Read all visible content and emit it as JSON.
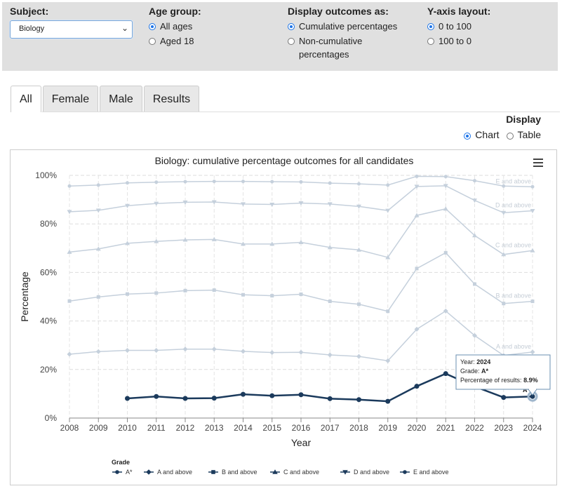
{
  "filters": {
    "subject": {
      "label": "Subject:",
      "value": "Biology"
    },
    "age_group": {
      "label": "Age group:",
      "options": [
        "All ages",
        "Aged 18"
      ],
      "selected": 0
    },
    "display_outcomes": {
      "label": "Display outcomes as:",
      "options": [
        "Cumulative percentages",
        "Non-cumulative",
        "percentages"
      ],
      "selected": 0
    },
    "y_axis": {
      "label": "Y-axis layout:",
      "options": [
        "0 to 100",
        "100 to 0"
      ],
      "selected": 0
    }
  },
  "tabs": [
    "All",
    "Female",
    "Male",
    "Results"
  ],
  "display": {
    "title": "Display",
    "options": [
      "Chart",
      "Table"
    ],
    "selected": 0
  },
  "tooltip": {
    "year_label": "Year:",
    "year": "2024",
    "grade_label": "Grade:",
    "grade": "A*",
    "pct_label": "Percentage of results:",
    "pct": "8.9%"
  },
  "chart_data": {
    "type": "line",
    "title": "Biology: cumulative percentage outcomes for all candidates",
    "xlabel": "Year",
    "ylabel": "Percentage",
    "x": [
      "2008",
      "2009",
      "2010",
      "2011",
      "2012",
      "2013",
      "2014",
      "2015",
      "2016",
      "2017",
      "2018",
      "2019",
      "2020",
      "2021",
      "2022",
      "2023",
      "2024"
    ],
    "ylim": [
      0,
      100
    ],
    "yticks": [
      "0%",
      "20%",
      "40%",
      "60%",
      "80%",
      "100%"
    ],
    "grid": true,
    "legend_title": "Grade",
    "legend_position": "bottom",
    "series": [
      {
        "name": "A*",
        "highlight": true,
        "end_label": "A*",
        "color": "#1b3a5c",
        "values": [
          null,
          null,
          8.1,
          8.9,
          8.1,
          8.2,
          9.8,
          9.2,
          9.6,
          8.0,
          7.6,
          6.9,
          13.1,
          18.3,
          13.0,
          8.5,
          8.9
        ]
      },
      {
        "name": "A and above",
        "end_label": "A and above",
        "color": "#c5d0dc",
        "values": [
          26.3,
          27.4,
          27.9,
          27.9,
          28.4,
          28.4,
          27.5,
          27.0,
          27.1,
          26.0,
          25.4,
          23.6,
          36.6,
          44.1,
          34.0,
          25.8,
          27.2
        ]
      },
      {
        "name": "B and above",
        "end_label": "B and above",
        "color": "#c5d0dc",
        "values": [
          48.2,
          49.9,
          51.1,
          51.5,
          52.5,
          52.7,
          50.8,
          50.4,
          51.0,
          48.1,
          46.9,
          44.0,
          61.6,
          68.1,
          55.2,
          47.2,
          48.1
        ]
      },
      {
        "name": "C and above",
        "end_label": "C and above",
        "color": "#c5d0dc",
        "values": [
          68.4,
          69.7,
          72.0,
          72.8,
          73.4,
          73.6,
          71.7,
          71.7,
          72.4,
          70.3,
          69.3,
          66.2,
          83.5,
          86.2,
          75.2,
          67.4,
          69.0
        ]
      },
      {
        "name": "D and above",
        "end_label": "D and above",
        "color": "#c5d0dc",
        "values": [
          85.0,
          85.6,
          87.5,
          88.4,
          88.9,
          89.0,
          88.2,
          88.0,
          88.6,
          88.2,
          87.2,
          85.5,
          95.4,
          95.7,
          89.7,
          84.6,
          85.4
        ]
      },
      {
        "name": "E and above",
        "end_label": "E and above",
        "color": "#c5d0dc",
        "values": [
          95.6,
          96.0,
          96.9,
          97.2,
          97.4,
          97.5,
          97.5,
          97.4,
          97.3,
          96.8,
          96.5,
          96.0,
          99.6,
          99.5,
          97.8,
          95.6,
          95.3
        ]
      }
    ]
  }
}
